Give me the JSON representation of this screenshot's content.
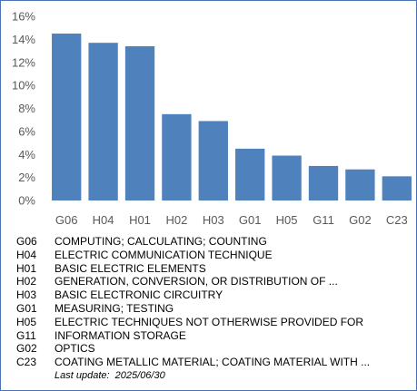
{
  "colors": {
    "bar": "#4f81bd",
    "frame": "#4a73b5",
    "axis_text": "#595959"
  },
  "chart_data": {
    "type": "bar",
    "title": "",
    "xlabel": "",
    "ylabel": "",
    "ylim": [
      0,
      16
    ],
    "ytick_labels": [
      "0%",
      "2%",
      "4%",
      "6%",
      "8%",
      "10%",
      "12%",
      "14%",
      "16%"
    ],
    "grid": false,
    "categories": [
      "G06",
      "H04",
      "H01",
      "H02",
      "H03",
      "G01",
      "H05",
      "G11",
      "G02",
      "C23"
    ],
    "values": [
      14.5,
      13.7,
      13.4,
      7.5,
      6.9,
      4.5,
      3.9,
      3.0,
      2.7,
      2.1
    ]
  },
  "legend": [
    {
      "code": "G06",
      "description": "COMPUTING; CALCULATING; COUNTING"
    },
    {
      "code": "H04",
      "description": "ELECTRIC COMMUNICATION TECHNIQUE"
    },
    {
      "code": "H01",
      "description": "BASIC ELECTRIC ELEMENTS"
    },
    {
      "code": "H02",
      "description": "GENERATION, CONVERSION, OR DISTRIBUTION OF ..."
    },
    {
      "code": "H03",
      "description": "BASIC ELECTRONIC CIRCUITRY"
    },
    {
      "code": "G01",
      "description": "MEASURING; TESTING"
    },
    {
      "code": "H05",
      "description": "ELECTRIC TECHNIQUES NOT OTHERWISE PROVIDED FOR"
    },
    {
      "code": "G11",
      "description": "INFORMATION STORAGE"
    },
    {
      "code": "G02",
      "description": "OPTICS"
    },
    {
      "code": "C23",
      "description": "COATING METALLIC MATERIAL; COATING MATERIAL WITH ..."
    }
  ],
  "footer": {
    "last_update": "Last update:  2025/06/30"
  }
}
